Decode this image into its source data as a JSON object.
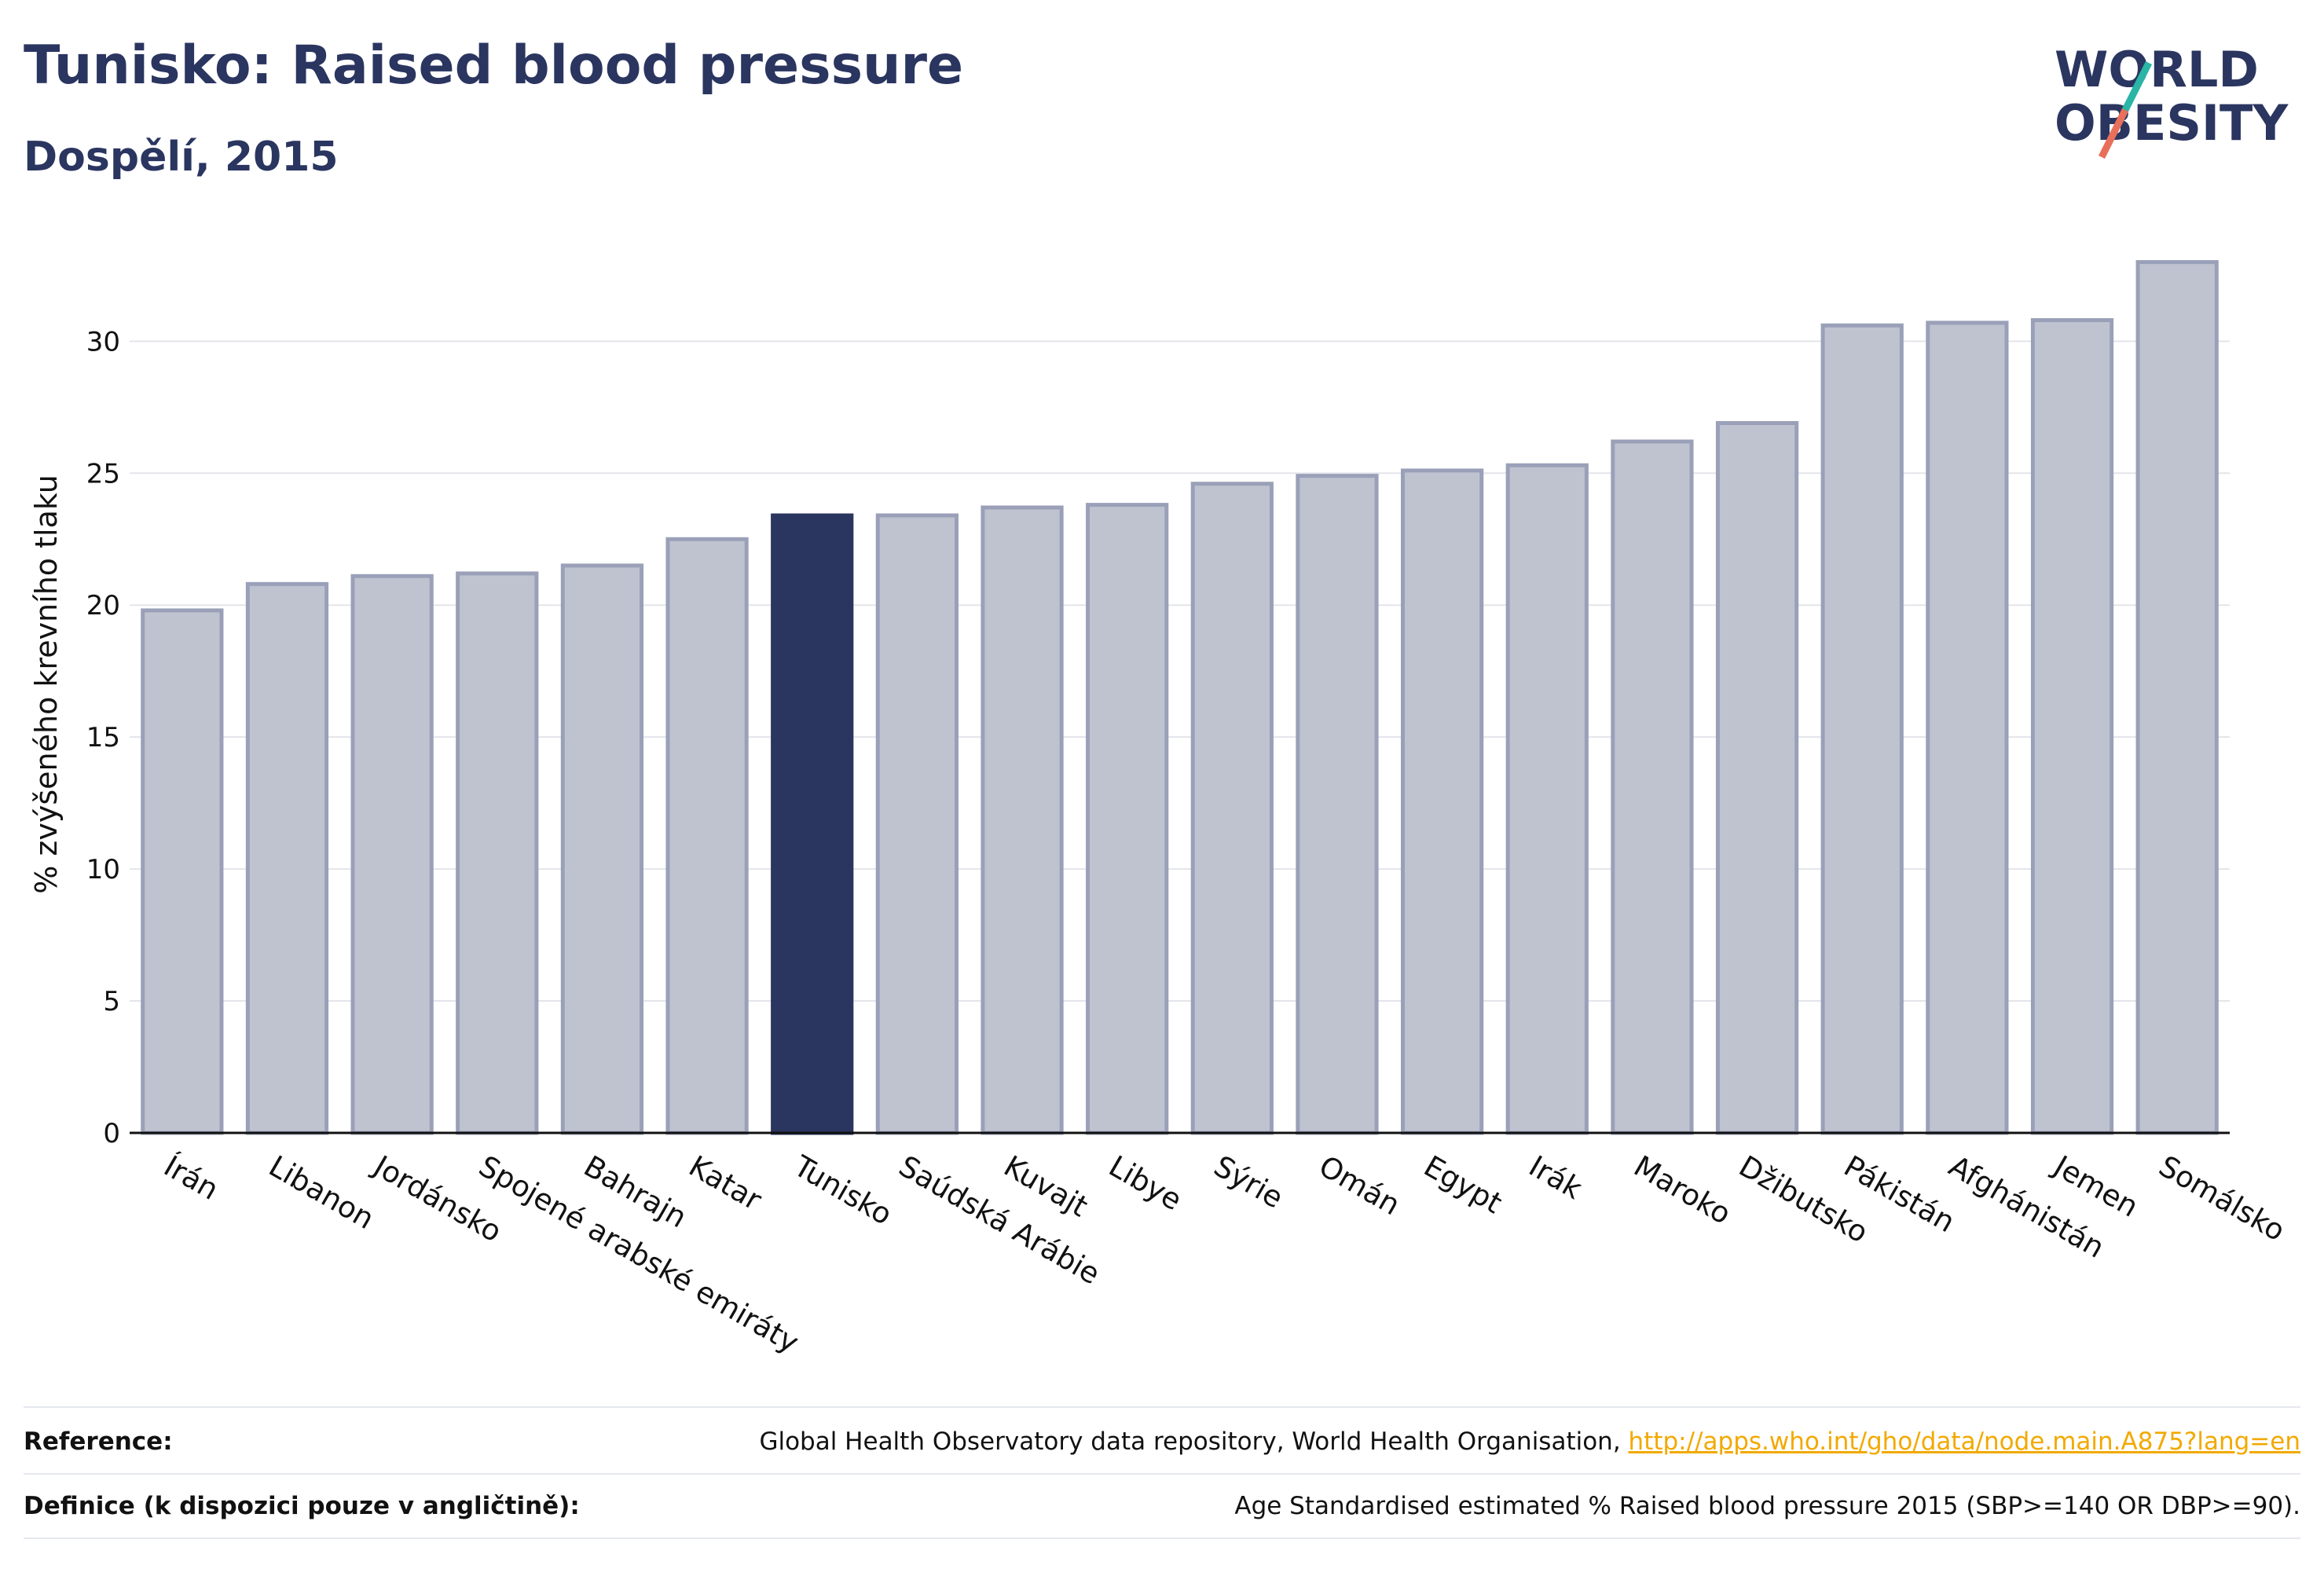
{
  "header": {
    "title": "Tunisko: Raised blood pressure",
    "subtitle": "Dospělí, 2015"
  },
  "logo": {
    "line1": "WORLD",
    "line2": "OBESITY"
  },
  "colors": {
    "highlight": "#2a3560",
    "bar": "#bfc3d0",
    "bar_edge": "#9aa0b8",
    "title": "#2a3560",
    "link": "#f2a900"
  },
  "chart_data": {
    "type": "bar",
    "ylabel": "% zvýšeného krevního tlaku",
    "ylim": [
      0,
      34
    ],
    "yticks": [
      0,
      5,
      10,
      15,
      20,
      25,
      30
    ],
    "grid": true,
    "highlight": "Tunisko",
    "categories": [
      "Írán",
      "Libanon",
      "Jordánsko",
      "Spojené arabské emiráty",
      "Bahrajn",
      "Katar",
      "Tunisko",
      "Saúdská Arábie",
      "Kuvajt",
      "Libye",
      "Sýrie",
      "Omán",
      "Egypt",
      "Irák",
      "Maroko",
      "Džibutsko",
      "Pákistán",
      "Afghánistán",
      "Jemen",
      "Somálsko"
    ],
    "values": [
      19.8,
      20.8,
      21.1,
      21.2,
      21.5,
      22.5,
      23.4,
      23.4,
      23.7,
      23.8,
      24.6,
      24.9,
      25.1,
      25.3,
      26.2,
      26.9,
      30.6,
      30.7,
      30.8,
      33.0
    ]
  },
  "footer": {
    "reference_label": "Reference:",
    "reference_text": "Global Health Observatory data repository, World Health Organisation,",
    "reference_link": "http://apps.who.int/gho/data/node.main.A875?lang=en",
    "definition_label": "Definice (k dispozici pouze v angličtině):",
    "definition_text": "Age Standardised estimated % Raised blood pressure 2015 (SBP>=140 OR DBP>=90)."
  }
}
